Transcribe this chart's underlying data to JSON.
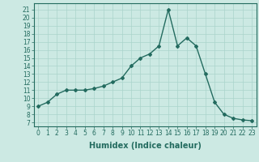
{
  "x": [
    0,
    1,
    2,
    3,
    4,
    5,
    6,
    7,
    8,
    9,
    10,
    11,
    12,
    13,
    14,
    15,
    16,
    17,
    18,
    19,
    20,
    21,
    22,
    23
  ],
  "y": [
    9.0,
    9.5,
    10.5,
    11.0,
    11.0,
    11.0,
    11.2,
    11.5,
    12.0,
    12.5,
    14.0,
    15.0,
    15.5,
    16.5,
    21.0,
    16.5,
    17.5,
    16.5,
    13.0,
    9.5,
    8.0,
    7.5,
    7.3,
    7.2
  ],
  "line_color": "#236b5f",
  "marker": "D",
  "marker_size": 2.0,
  "bg_color": "#cce9e3",
  "grid_color": "#aad4cc",
  "xlabel": "Humidex (Indice chaleur)",
  "ylabel_ticks": [
    7,
    8,
    9,
    10,
    11,
    12,
    13,
    14,
    15,
    16,
    17,
    18,
    19,
    20,
    21
  ],
  "ylim": [
    6.5,
    21.8
  ],
  "xlim": [
    -0.5,
    23.5
  ],
  "xticks": [
    0,
    1,
    2,
    3,
    4,
    5,
    6,
    7,
    8,
    9,
    10,
    11,
    12,
    13,
    14,
    15,
    16,
    17,
    18,
    19,
    20,
    21,
    22,
    23
  ],
  "tick_label_size": 5.5,
  "xlabel_size": 7.0,
  "line_width": 1.0
}
